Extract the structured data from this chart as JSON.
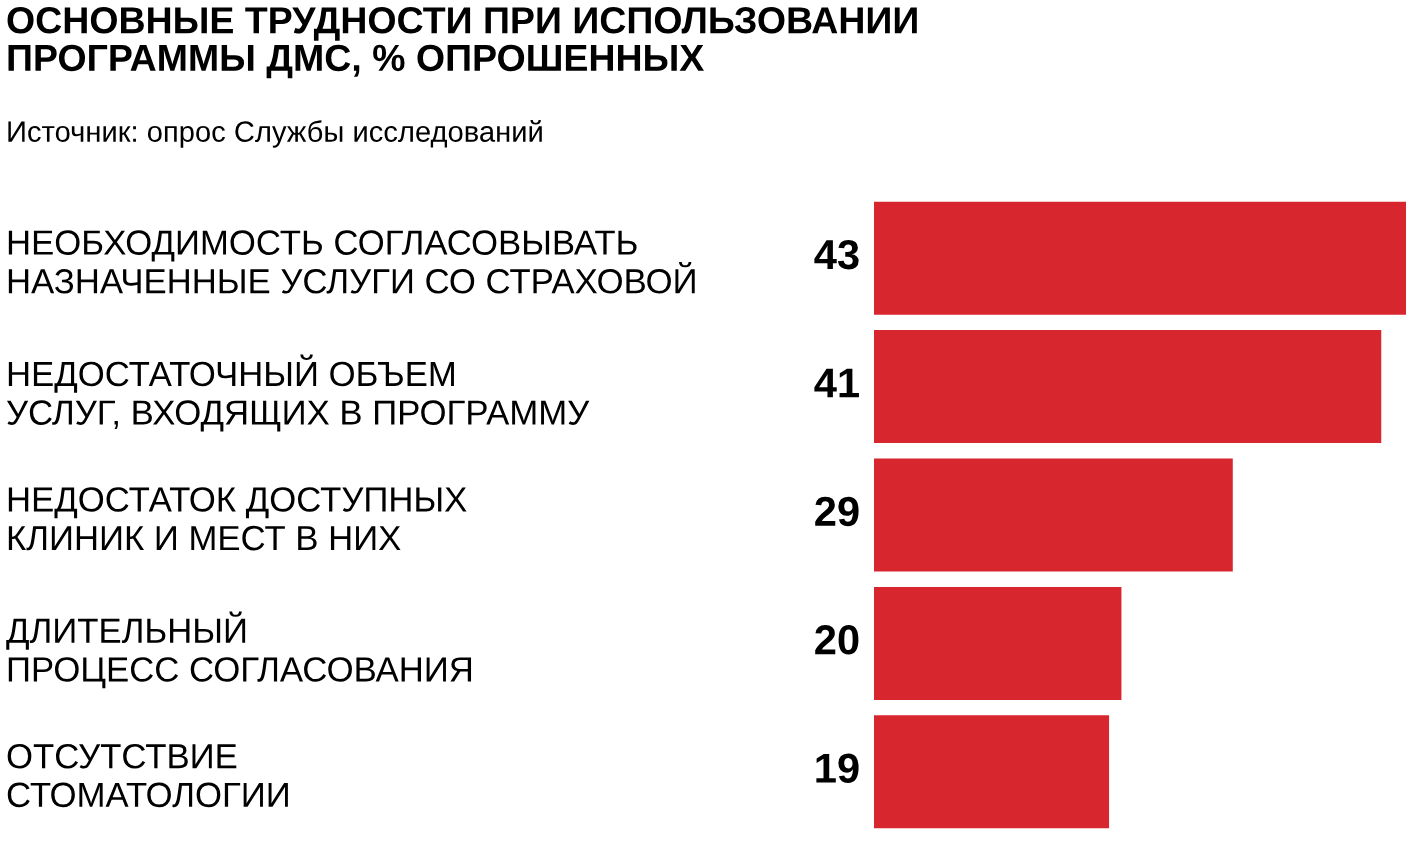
{
  "chart_data": {
    "type": "bar",
    "orientation": "horizontal",
    "title": "ОСНОВНЫЕ ТРУДНОСТИ ПРИ ИСПОЛЬЗОВАНИИ\nПРОГРАММЫ ДМС, % ОПРОШЕННЫХ",
    "annotations": [
      "Источник: опрос Службы исследований"
    ],
    "categories": [
      "НЕОБХОДИМОСТЬ СОГЛАСОВЫВАТЬ\nНАЗНАЧЕННЫЕ УСЛУГИ СО СТРАХОВОЙ",
      "НЕДОСТАТОЧНЫЙ ОБЪЕМ\nУСЛУГ, ВХОДЯЩИХ В ПРОГРАММУ",
      "НЕДОСТАТОК ДОСТУПНЫХ\nКЛИНИК И МЕСТ В НИХ",
      "ДЛИТЕЛЬНЫЙ\nПРОЦЕСС СОГЛАСОВАНИЯ",
      "ОТСУТСТВИЕ\nСТОМАТОЛОГИИ"
    ],
    "values": [
      43,
      41,
      29,
      20,
      19
    ],
    "color": "#d7262e",
    "data_labels": true
  }
}
